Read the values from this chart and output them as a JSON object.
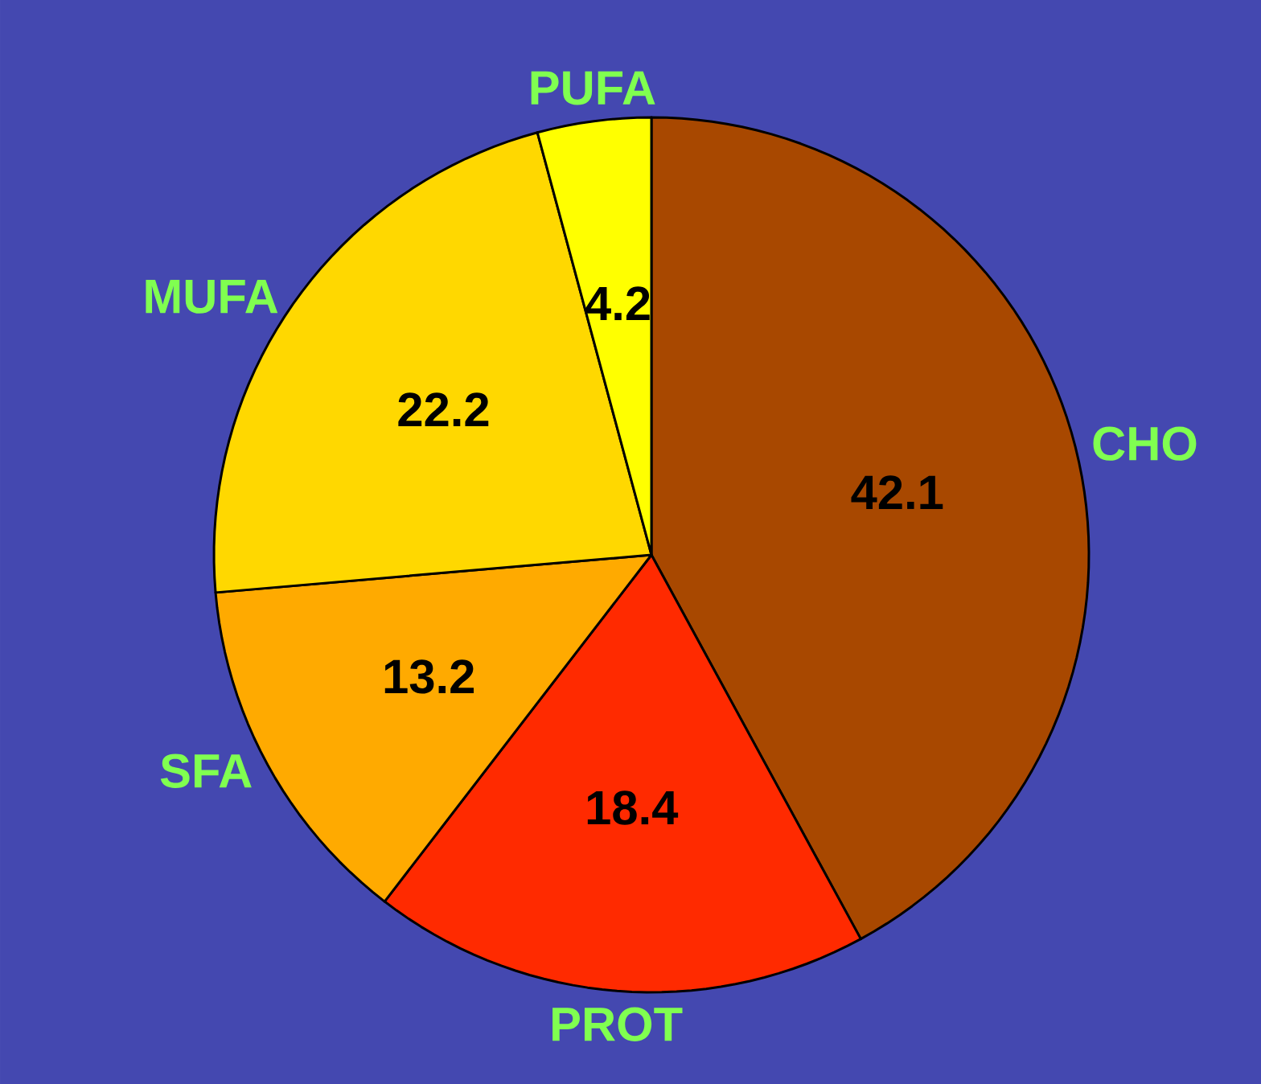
{
  "chart_data": {
    "type": "pie",
    "categories": [
      "CHO",
      "PROT",
      "SFA",
      "MUFA",
      "PUFA"
    ],
    "values": [
      42.1,
      18.4,
      13.2,
      22.2,
      4.2
    ],
    "colors": [
      "#a84800",
      "#ff2a00",
      "#ffaa00",
      "#ffd800",
      "#ffff00"
    ],
    "data_labels": true
  }
}
